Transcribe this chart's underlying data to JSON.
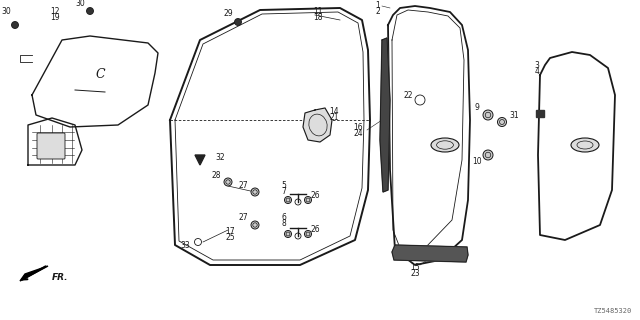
{
  "part_number_label": "TZ5485320",
  "bg_color": "#ffffff",
  "line_color": "#1a1a1a",
  "gray_color": "#888888",
  "dark_gray": "#555555"
}
